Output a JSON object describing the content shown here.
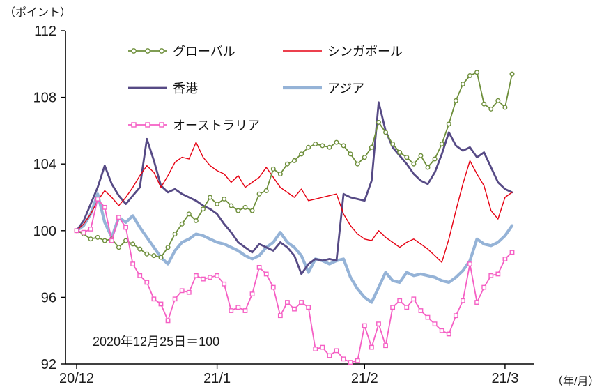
{
  "labels": {
    "y_unit": "（ポイント）",
    "x_unit": "（年/月）",
    "annotation": "2020年12月25日＝100"
  },
  "chart_data": {
    "type": "line",
    "title": "",
    "xlabel": "年/月",
    "ylabel": "ポイント",
    "ylim": [
      92,
      112
    ],
    "yticks": [
      112,
      108,
      104,
      100,
      96,
      92
    ],
    "x_tick_labels": [
      "20/12",
      "21/1",
      "21/2",
      "21/3"
    ],
    "x_tick_positions": [
      0,
      20,
      41,
      61
    ],
    "x_count": 63,
    "grid": false,
    "legend_position": "inside-top-left",
    "axis_color": "#000000",
    "tick_text_color": "#1a1a1a",
    "base_note": "2020年12月25日＝100",
    "series": [
      {
        "name": "グローバル",
        "color": "#6e8f3b",
        "marker": "circle",
        "width": 1.8,
        "values": [
          100,
          99.8,
          99.5,
          99.6,
          99.4,
          99.5,
          99.0,
          99.4,
          99.2,
          98.9,
          98.6,
          98.5,
          98.4,
          99.0,
          99.8,
          100.4,
          101.0,
          100.6,
          101.3,
          102.0,
          101.6,
          101.9,
          101.5,
          101.2,
          101.4,
          101.2,
          102.2,
          102.4,
          103.7,
          103.4,
          104.0,
          104.2,
          104.6,
          105.0,
          105.2,
          105.1,
          105.0,
          105.3,
          105.1,
          104.6,
          104.0,
          104.4,
          105.0,
          106.5,
          105.9,
          105.2,
          104.7,
          104.4,
          104.0,
          104.5,
          103.8,
          104.3,
          105.2,
          106.4,
          107.8,
          108.8,
          109.3,
          109.5,
          107.6,
          107.3,
          107.8,
          107.4,
          109.4
        ]
      },
      {
        "name": "シンガポール",
        "color": "#e60012",
        "marker": "none",
        "width": 1.4,
        "values": [
          100,
          100.4,
          101.0,
          101.8,
          102.4,
          102.0,
          101.5,
          102.0,
          102.6,
          103.3,
          103.9,
          103.5,
          102.6,
          103.3,
          104.1,
          104.4,
          104.3,
          105.3,
          104.4,
          103.9,
          103.6,
          103.4,
          102.9,
          103.3,
          102.6,
          102.9,
          103.2,
          103.8,
          103.2,
          102.6,
          102.3,
          102.0,
          102.5,
          101.8,
          101.9,
          102.0,
          102.1,
          102.2,
          101.0,
          100.3,
          99.8,
          99.5,
          99.4,
          100.0,
          99.6,
          99.3,
          99.0,
          99.3,
          99.5,
          99.2,
          98.9,
          98.5,
          98.1,
          99.5,
          101.2,
          102.8,
          104.2,
          103.4,
          102.7,
          101.2,
          100.7,
          102.0,
          102.3
        ]
      },
      {
        "name": "香港",
        "color": "#564a85",
        "marker": "none",
        "width": 2.8,
        "values": [
          100,
          100.6,
          101.6,
          102.6,
          103.9,
          102.8,
          102.1,
          101.6,
          102.1,
          102.6,
          105.5,
          104.2,
          102.7,
          102.3,
          102.5,
          102.2,
          102.0,
          101.8,
          101.5,
          101.3,
          101.0,
          100.4,
          99.9,
          99.3,
          99.0,
          98.7,
          99.2,
          99.0,
          98.8,
          99.3,
          99.0,
          98.5,
          97.4,
          98.0,
          98.3,
          98.2,
          98.3,
          98.2,
          102.2,
          102.0,
          101.9,
          101.8,
          103.0,
          107.7,
          106.0,
          105.0,
          104.5,
          104.0,
          103.4,
          103.0,
          102.8,
          103.5,
          104.6,
          105.9,
          105.1,
          104.8,
          105.0,
          104.4,
          104.7,
          103.8,
          102.9,
          102.5,
          102.3
        ]
      },
      {
        "name": "アジア",
        "color": "#95b3d7",
        "marker": "none",
        "width": 4.2,
        "values": [
          100,
          100.3,
          101.0,
          102.2,
          100.5,
          99.6,
          100.8,
          100.5,
          100.9,
          100.2,
          99.6,
          99.0,
          98.4,
          98.0,
          98.8,
          99.3,
          99.5,
          99.8,
          99.7,
          99.5,
          99.3,
          99.2,
          99.0,
          98.8,
          98.5,
          98.3,
          98.5,
          99.0,
          99.3,
          99.9,
          99.3,
          99.0,
          98.5,
          97.5,
          98.3,
          98.2,
          98.0,
          98.2,
          98.3,
          97.2,
          96.5,
          96.0,
          95.7,
          96.6,
          97.5,
          97.0,
          96.9,
          97.5,
          97.3,
          97.4,
          97.3,
          97.2,
          97.0,
          96.9,
          97.2,
          97.6,
          98.2,
          99.5,
          99.2,
          99.1,
          99.3,
          99.7,
          100.3
        ]
      },
      {
        "name": "オーストラリア",
        "color": "#f55fc4",
        "marker": "square",
        "width": 1.8,
        "values": [
          100,
          99.9,
          100.1,
          101.9,
          101.4,
          99.4,
          100.8,
          100.2,
          98.0,
          97.3,
          96.9,
          95.9,
          95.6,
          94.6,
          95.9,
          96.4,
          96.3,
          97.3,
          97.1,
          97.2,
          97.3,
          96.8,
          95.2,
          95.4,
          95.2,
          96.2,
          97.8,
          97.4,
          96.6,
          94.9,
          95.7,
          95.3,
          95.7,
          95.4,
          92.9,
          93.0,
          92.5,
          92.8,
          92.3,
          92.1,
          92.2,
          94.3,
          93.0,
          94.4,
          93.1,
          95.4,
          95.8,
          95.4,
          95.9,
          95.2,
          94.8,
          94.4,
          94.0,
          93.8,
          94.9,
          95.8,
          98.0,
          95.7,
          96.6,
          97.3,
          97.4,
          98.3,
          98.7
        ]
      }
    ]
  }
}
